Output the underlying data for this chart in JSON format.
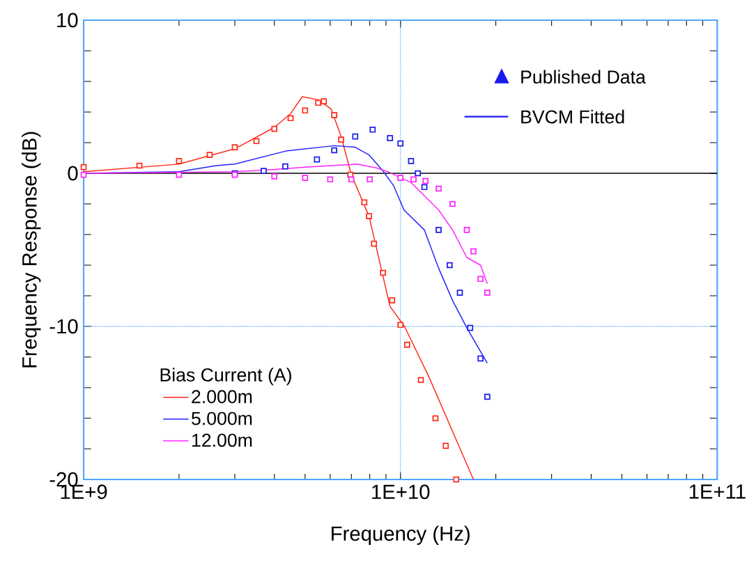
{
  "chart_data": {
    "type": "line",
    "xlabel": "Frequency (Hz)",
    "ylabel": "Frequency Response (dB)",
    "log": "x",
    "xlim": [
      1000000000.0,
      100000000000.0
    ],
    "ylim": [
      -20,
      10
    ],
    "xticks": [
      {
        "value": 1000000000.0,
        "label": "1E+9"
      },
      {
        "value": 10000000000.0,
        "label": "1E+10"
      },
      {
        "value": 100000000000.0,
        "label": "1E+11"
      }
    ],
    "yticks": [
      -20,
      {
        "value": -18,
        "label": null
      },
      {
        "value": -16,
        "label": null
      },
      {
        "value": -14,
        "label": null
      },
      {
        "value": -12,
        "label": null
      },
      -10,
      {
        "value": -8,
        "label": null
      },
      {
        "value": -6,
        "label": null
      },
      {
        "value": -4,
        "label": null
      },
      {
        "value": -2,
        "label": null
      },
      0,
      {
        "value": 2,
        "label": null
      },
      {
        "value": 4,
        "label": null
      },
      {
        "value": 6,
        "label": null
      },
      {
        "value": 8,
        "label": null
      },
      10
    ],
    "legend": "bottom left",
    "legend_title": "Bias Current (A)",
    "line_style": "solid",
    "ref_lines": [
      {
        "axis": "y",
        "value": 0,
        "color": "#000000",
        "line_style": "solid"
      },
      {
        "axis": "y",
        "value": -10,
        "color": "#66b3ff",
        "line_style": "dotted"
      },
      {
        "axis": "x",
        "value": 10000000000.0,
        "color": "#66b3ff",
        "line_style": "dotted"
      }
    ],
    "annotations": [
      "Published Data",
      "BVCM Fitted"
    ],
    "series": [
      {
        "name": "2.000m",
        "marker": "none",
        "color": "#ff2a1a",
        "x": [
          1000000000.0,
          2000000000.0,
          3000000000.0,
          4000000000.0,
          4500000000.0,
          4900000000.0,
          5500000000.0,
          6040000000.0,
          6500000000.0,
          7000000000.0,
          7960000000.0,
          9270000000.0,
          10300000000.0,
          12300000000.0,
          17000000000.0
        ],
        "values": [
          0.1,
          0.6,
          1.6,
          3.0,
          3.9,
          5.0,
          4.8,
          4.2,
          2.4,
          -0.1,
          -2.8,
          -8.7,
          -10,
          -13.3,
          -20
        ]
      },
      {
        "name": "5.000m",
        "marker": "none",
        "color": "#2222ff",
        "x": [
          1000000000.0,
          2000000000.0,
          2620000000.0,
          3000000000.0,
          4340000000.0,
          6180000000.0,
          7200000000.0,
          7960000000.0,
          8810000000.0,
          9510000000.0,
          10260000000.0,
          11900000000.0,
          13200000000.0,
          14600000000.0,
          16200000000.0,
          18800000000.0
        ],
        "values": [
          0,
          0.1,
          0.5,
          0.6,
          1.45,
          1.8,
          1.7,
          1.2,
          0.15,
          -0.8,
          -2.4,
          -3.7,
          -6.2,
          -8.3,
          -10.1,
          -12.4
        ]
      },
      {
        "name": "12.00m",
        "marker": "none",
        "color": "#ff22ff",
        "x": [
          1000000000.0,
          3000000000.0,
          4000000000.0,
          5000000000.0,
          7300000000.0,
          8400000000.0,
          9270000000.0,
          10000000000.0,
          10800000000.0,
          13200000000.0,
          14600000000.0,
          16200000000.0,
          17900000000.0,
          18800000000.0
        ],
        "values": [
          0,
          0.1,
          0.25,
          0.4,
          0.6,
          0.35,
          0.05,
          -0.3,
          -0.6,
          -2.4,
          -3.7,
          -5.5,
          -6.0,
          -7.2
        ]
      },
      {
        "type": "scatter",
        "marker": "square",
        "color": "#ff2a1a",
        "x": [
          1000000000.0,
          1500000000.0,
          2000000000.0,
          2500000000.0,
          3000000000.0,
          3510000000.0,
          4000000000.0,
          4500000000.0,
          5000000000.0,
          5500000000.0,
          5730000000.0,
          6180000000.0,
          6500000000.0,
          6950000000.0,
          7690000000.0,
          7960000000.0,
          8250000000.0,
          8810000000.0,
          9410000000.0,
          10000000000.0,
          10500000000.0,
          11600000000.0,
          12900000000.0,
          13900000000.0,
          15000000000.0
        ],
        "values": [
          0.4,
          0.5,
          0.8,
          1.2,
          1.7,
          2.1,
          2.9,
          3.6,
          4.1,
          4.6,
          4.7,
          3.8,
          2.2,
          -0.1,
          -1.9,
          -2.8,
          -4.6,
          -6.5,
          -8.3,
          -9.9,
          -11.2,
          -13.5,
          -16,
          -17.8,
          -20
        ]
      },
      {
        "type": "scatter",
        "marker": "square",
        "color": "#1a1aee",
        "x": [
          3000000000.0,
          3700000000.0,
          4330000000.0,
          5450000000.0,
          6180000000.0,
          7200000000.0,
          8170000000.0,
          9270000000.0,
          10000000000.0,
          10800000000.0,
          11350000000.0,
          11900000000.0,
          13200000000.0,
          14300000000.0,
          15400000000.0,
          16600000000.0,
          17900000000.0,
          18800000000.0
        ],
        "values": [
          0,
          0.15,
          0.45,
          0.9,
          1.5,
          2.4,
          2.85,
          2.3,
          1.95,
          0.8,
          0,
          -0.9,
          -3.7,
          -6,
          -7.8,
          -10.1,
          -12.1,
          -14.6
        ]
      },
      {
        "type": "scatter",
        "marker": "square",
        "color": "#ff22ff",
        "x": [
          1000000000.0,
          2000000000.0,
          3000000000.0,
          4000000000.0,
          5000000000.0,
          6000000000.0,
          7000000000.0,
          8000000000.0,
          10000000000.0,
          11000000000.0,
          12000000000.0,
          13200000000.0,
          14600000000.0,
          16200000000.0,
          17000000000.0,
          17900000000.0,
          18800000000.0
        ],
        "values": [
          -0.1,
          -0.1,
          -0.1,
          -0.2,
          -0.3,
          -0.4,
          -0.4,
          -0.4,
          -0.3,
          -0.4,
          -0.5,
          -1.0,
          -2.0,
          -3.7,
          -5.1,
          -6.9,
          -7.8
        ]
      }
    ]
  }
}
